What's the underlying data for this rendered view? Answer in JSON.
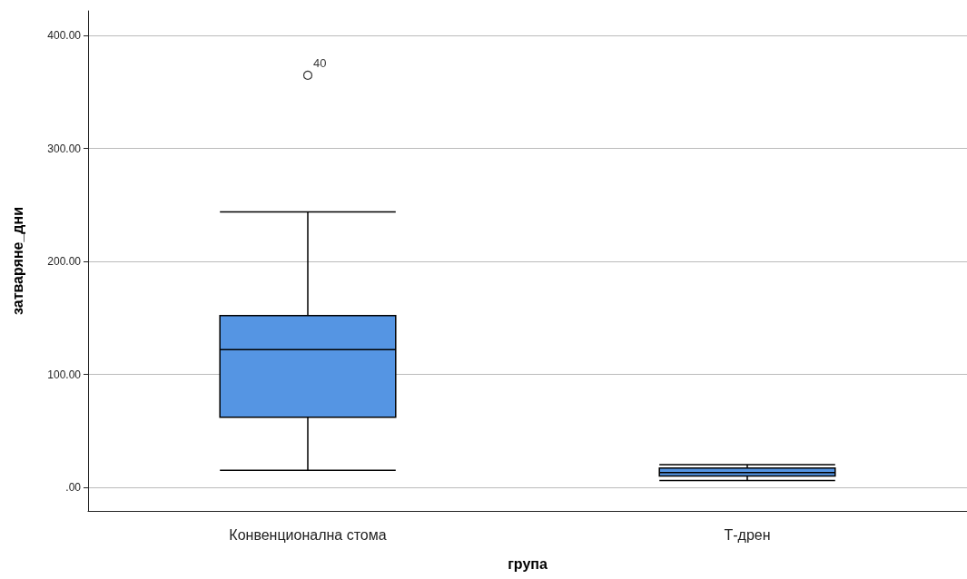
{
  "chart_data": {
    "type": "box",
    "xlabel": "група",
    "ylabel": "затваряне_дни",
    "categories": [
      "Конвенционална стома",
      "Т-дрен"
    ],
    "series": [
      {
        "color": "#5595e3",
        "boxes": [
          {
            "low": 15,
            "q1": 62,
            "median": 122,
            "q3": 152,
            "high": 244,
            "outliers": [
              365
            ]
          },
          {
            "low": 6,
            "q1": 10,
            "median": 13,
            "q3": 17,
            "high": 20
          }
        ]
      }
    ],
    "ylim": [
      -21,
      422
    ],
    "yticks": [
      {
        "value": 0,
        "label": ".00"
      },
      {
        "value": 100,
        "label": "100.00"
      },
      {
        "value": 200,
        "label": "200.00"
      },
      {
        "value": 300,
        "label": "300.00"
      },
      {
        "value": 400,
        "label": "400.00"
      }
    ],
    "grid": "y",
    "annotations": [
      "40"
    ]
  }
}
